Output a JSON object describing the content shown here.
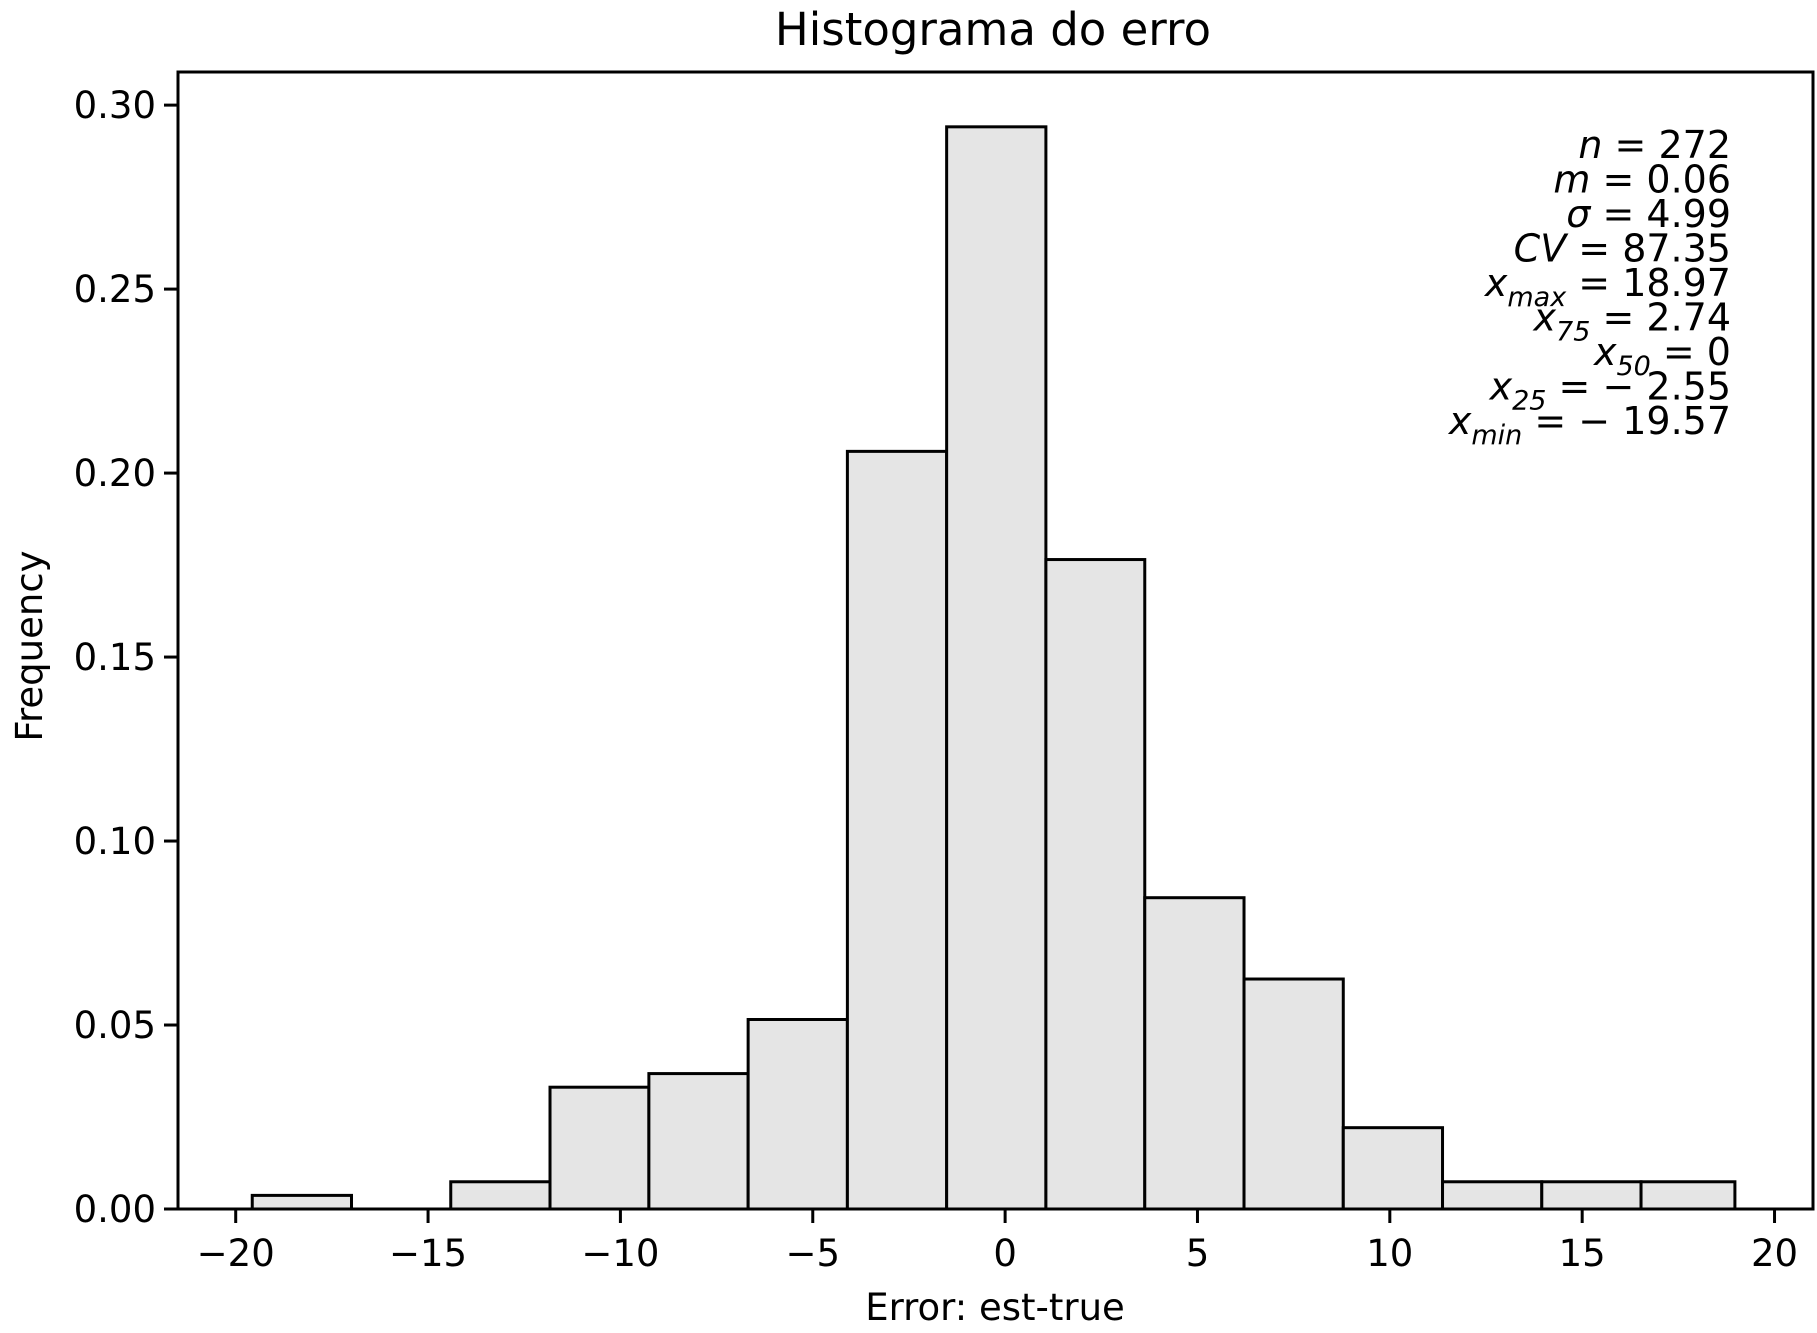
{
  "chart_data": {
    "type": "bar",
    "title": "Histograma do erro",
    "xlabel": "Error: est-true",
    "ylabel": "Frequency",
    "xlim": [
      -21.5,
      21
    ],
    "ylim": [
      0,
      0.309
    ],
    "xticks": [
      -20,
      -15,
      -10,
      -5,
      0,
      5,
      10,
      15,
      20
    ],
    "xtick_labels": [
      "−20",
      "−15",
      "−10",
      "−5",
      "0",
      "5",
      "10",
      "15",
      "20"
    ],
    "yticks": [
      0.0,
      0.05,
      0.1,
      0.15,
      0.2,
      0.25,
      0.3
    ],
    "ytick_labels": [
      "0.00",
      "0.05",
      "0.10",
      "0.15",
      "0.20",
      "0.25",
      "0.30"
    ],
    "bin_edges": [
      -19.57,
      -16.99,
      -14.41,
      -11.83,
      -9.26,
      -6.68,
      -4.1,
      -1.52,
      1.06,
      3.63,
      6.21,
      8.79,
      11.37,
      13.95,
      16.53,
      18.97
    ],
    "values": [
      0.0037,
      0.0,
      0.0074,
      0.0331,
      0.0368,
      0.0515,
      0.2059,
      0.2941,
      0.1765,
      0.0846,
      0.0625,
      0.0221,
      0.0074,
      0.0074,
      0.0074
    ],
    "grid": false,
    "legend": "none",
    "colors": {
      "bar_fill": "#e5e5e5",
      "bar_edge": "#000000",
      "axis": "#000000",
      "background": "#ffffff"
    },
    "annotations": [
      {
        "label": "n",
        "sub": "",
        "italic": true,
        "value": "= 272"
      },
      {
        "label": "m",
        "sub": "",
        "italic": true,
        "value": "= 0.06"
      },
      {
        "label": "σ",
        "sub": "",
        "italic": true,
        "value": "= 4.99"
      },
      {
        "label": "CV",
        "sub": "",
        "italic": true,
        "value": "= 87.35"
      },
      {
        "label": "x",
        "sub": "max",
        "italic": true,
        "value": "= 18.97"
      },
      {
        "label": "x",
        "sub": "75",
        "italic": true,
        "value": "= 2.74"
      },
      {
        "label": "x",
        "sub": "50",
        "italic": true,
        "value": "= 0"
      },
      {
        "label": "x",
        "sub": "25",
        "italic": true,
        "value": "= − 2.55"
      },
      {
        "label": "x",
        "sub": "min",
        "italic": true,
        "value": "= − 19.57"
      }
    ]
  }
}
